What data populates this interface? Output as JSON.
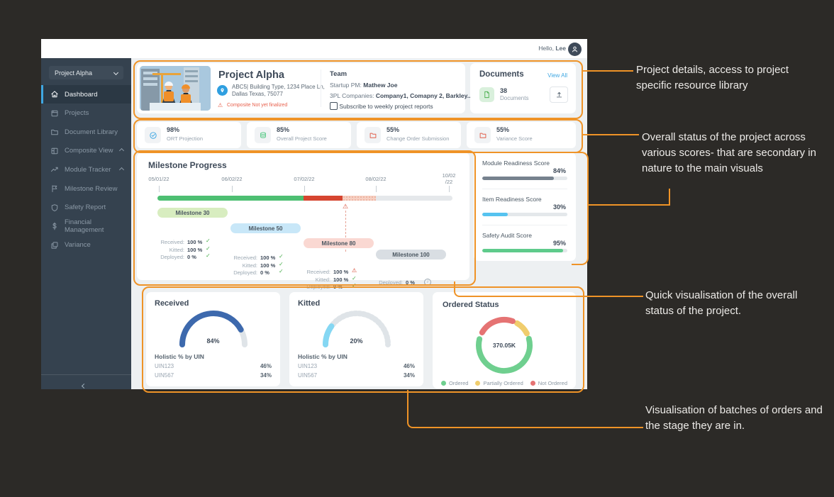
{
  "topbar": {
    "greeting": "Hello,",
    "user": "Lee"
  },
  "sidebar": {
    "project_selector": "Project Alpha",
    "items": [
      {
        "label": "Dashboard",
        "icon": "home-icon",
        "active": true
      },
      {
        "label": "Projects",
        "icon": "projects-icon"
      },
      {
        "label": "Document Library",
        "icon": "folder-icon"
      },
      {
        "label": "Composite View",
        "icon": "composite-icon",
        "expand": true
      },
      {
        "label": "Module Tracker",
        "icon": "tracker-icon",
        "expand": true
      },
      {
        "label": "Milestone Review",
        "icon": "flag-icon"
      },
      {
        "label": "Safety Report",
        "icon": "shield-icon"
      },
      {
        "label": "Financial Management",
        "icon": "dollar-icon"
      },
      {
        "label": "Variance",
        "icon": "variance-icon"
      }
    ]
  },
  "header": {
    "title": "Project Alpha",
    "address_line1": "ABC5| Building Type, 1234 Place Ln,",
    "address_line2": "Dallas Texas, 75077",
    "warning": "Composite Not yet finalized",
    "team_label": "Team",
    "pm_label": "Startup PM:",
    "pm_value": "Mathew Joe",
    "companies_label": "3PL  Companies:",
    "companies_value": "Company1, Comapny 2, Barkley...",
    "subscribe_label": "Subscribe to weekly project reports"
  },
  "documents": {
    "title": "Documents",
    "view_all": "View All",
    "count": "38",
    "count_label": "Documents"
  },
  "kpis": [
    {
      "value": "98%",
      "label": "ORT Projection",
      "icon": "check-circle-icon",
      "color": "#3fa7e2"
    },
    {
      "value": "85%",
      "label": "Overall Project Score",
      "icon": "coins-icon",
      "color": "#5ecb8b"
    },
    {
      "value": "55%",
      "label": "Change Order Submission",
      "icon": "folder-alert-icon",
      "color": "#e0604d"
    },
    {
      "value": "55%",
      "label": "Variance Score",
      "icon": "folder-alert-icon",
      "color": "#e0604d"
    }
  ],
  "milestone_progress": {
    "title": "Milestone Progress",
    "dates": [
      "05/01/22",
      "06/02/22",
      "07/02/22",
      "08/02/22",
      "10/02/22"
    ],
    "segments": [
      {
        "color": "#4dbf72",
        "pct": 49.5,
        "style": "solid"
      },
      {
        "color": "#d64530",
        "pct": 13.3,
        "style": "solid"
      },
      {
        "color": "#f6d0c3",
        "pct": 11.3,
        "style": "dotted"
      },
      {
        "color": "#e5e8eb",
        "pct": 25.9,
        "style": "solid"
      }
    ],
    "milestones": [
      {
        "name": "Milestone 30",
        "color": "#d8edc0",
        "rows": [
          [
            "Received:",
            "100 %",
            "check"
          ],
          [
            "Kitted:",
            "100 %",
            "check"
          ],
          [
            "Deployed:",
            "0 %",
            "check"
          ]
        ]
      },
      {
        "name": "Milestone 50",
        "color": "#c8e7f8",
        "rows": [
          [
            "Received:",
            "100 %",
            "check"
          ],
          [
            "Kitted:",
            "100 %",
            "check"
          ],
          [
            "Deployed:",
            "0 %",
            "check"
          ]
        ]
      },
      {
        "name": "Milestone 80",
        "color": "#fad8d2",
        "rows": [
          [
            "Received:",
            "100 %",
            "warn"
          ],
          [
            "Kitted:",
            "100 %",
            "check"
          ],
          [
            "Deployed:",
            "0 %",
            "check"
          ]
        ]
      },
      {
        "name": "Milestone 100",
        "color": "#d9dee3",
        "rows": [
          [
            "Deployed:",
            "0 %",
            "info"
          ]
        ]
      }
    ]
  },
  "readiness_scores": [
    {
      "label": "Module Readiness Score",
      "value": "84%",
      "pct": 84,
      "color": "#76828e"
    },
    {
      "label": "Item Readiness Score",
      "value": "30%",
      "pct": 30,
      "color": "#56c3f0"
    },
    {
      "label": "Safety Audit Score",
      "value": "95%",
      "pct": 95,
      "color": "#5ecb8b"
    }
  ],
  "gauges": [
    {
      "title": "Received",
      "value": "84%",
      "pct": 84,
      "color": "#3d69ad",
      "track": "solid",
      "list_title": "Holistic % by UIN",
      "rows": [
        [
          "UIN123",
          "46%"
        ],
        [
          "UIN567",
          "34%"
        ]
      ]
    },
    {
      "title": "Kitted",
      "value": "20%",
      "pct": 20,
      "color": "#85d7f3",
      "track": "dotted",
      "list_title": "Holistic % by UIN",
      "rows": [
        [
          "UIN123",
          "46%"
        ],
        [
          "UIN567",
          "34%"
        ]
      ]
    }
  ],
  "ordered_status": {
    "title": "Ordered Status",
    "center_value": "370.05K",
    "segments": [
      {
        "label": "Ordered",
        "color": "#6fcf8f",
        "pct": 58
      },
      {
        "label": "Partially Ordered",
        "color": "#f0cd6d",
        "pct": 9
      },
      {
        "label": "Not Ordered",
        "color": "#e57373",
        "pct": 22
      }
    ]
  },
  "annotations": [
    {
      "text": "Project details, access to project specific resource library"
    },
    {
      "text": "Overall status of the project across various scores- that are secondary in nature to the main visuals"
    },
    {
      "text": "Quick visualisation of the overall status of the project."
    },
    {
      "text": "Visualisation of batches of orders and the stage they are in."
    }
  ],
  "accent_color": "#ef9327"
}
